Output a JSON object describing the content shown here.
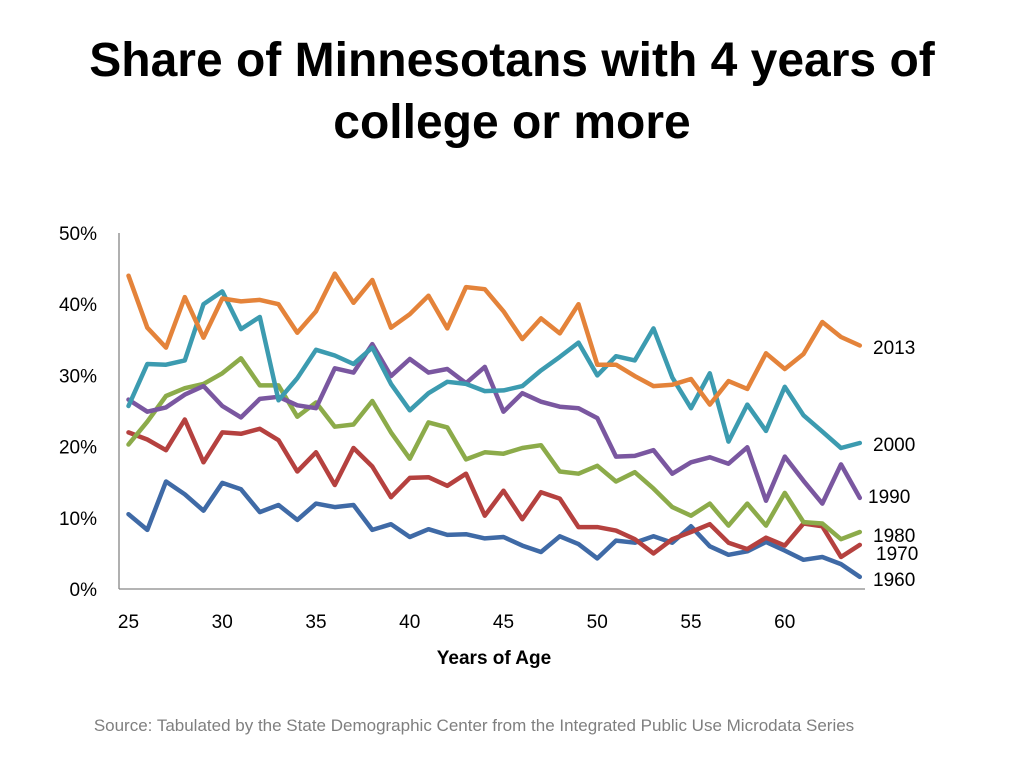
{
  "title": {
    "line1": "Share of Minnesotans with 4 years of",
    "line2": "college or more"
  },
  "source": "Source: Tabulated by the State Demographic Center from the Integrated Public Use Microdata Series",
  "chart_data": {
    "type": "line",
    "title": "Share of Minnesotans with 4 years of college or more",
    "xlabel": "Years of Age",
    "ylabel": "",
    "xlim": [
      25,
      64
    ],
    "ylim": [
      0,
      50
    ],
    "xticks": [
      25,
      30,
      35,
      40,
      45,
      50,
      55,
      60
    ],
    "xtick_labels": [
      "25",
      "30",
      "35",
      "40",
      "45",
      "50",
      "55",
      "60"
    ],
    "yticks": [
      0,
      10,
      20,
      30,
      40,
      50
    ],
    "ytick_labels": [
      "0%",
      "10%",
      "20%",
      "30%",
      "40%",
      "50%"
    ],
    "grid": false,
    "legend": "direct labels at line ends (right)",
    "x": [
      25,
      26,
      27,
      28,
      29,
      30,
      31,
      32,
      33,
      34,
      35,
      36,
      37,
      38,
      39,
      40,
      41,
      42,
      43,
      44,
      45,
      46,
      47,
      48,
      49,
      50,
      51,
      52,
      53,
      54,
      55,
      56,
      57,
      58,
      59,
      60,
      61,
      62,
      63,
      64
    ],
    "series": [
      {
        "name": "2013",
        "label": "2013",
        "color": "#e4833a",
        "values": [
          44,
          36.7,
          33.9,
          41,
          35.3,
          40.8,
          40.4,
          40.6,
          40,
          36,
          39,
          44.3,
          40.2,
          43.4,
          36.7,
          38.6,
          41.2,
          36.6,
          42.4,
          42.1,
          39,
          35.1,
          38,
          35.9,
          40,
          31.5,
          31.5,
          29.9,
          28.5,
          28.7,
          29.5,
          25.9,
          29.2,
          28.1,
          33.1,
          30.9,
          33,
          37.5,
          35.4,
          34.2
        ]
      },
      {
        "name": "2000",
        "label": "2000",
        "color": "#3c9bb0",
        "values": [
          25.7,
          31.6,
          31.5,
          32.1,
          40,
          41.8,
          36.5,
          38.2,
          26.5,
          29.6,
          33.6,
          32.8,
          31.6,
          33.9,
          28.8,
          25.1,
          27.5,
          29.1,
          28.8,
          27.8,
          27.9,
          28.5,
          30.7,
          32.6,
          34.6,
          30,
          32.7,
          32.1,
          36.6,
          29.7,
          25.4,
          30.3,
          20.7,
          25.9,
          22.2,
          28.4,
          24.4,
          22.1,
          19.8,
          20.5
        ]
      },
      {
        "name": "1990",
        "label": "1990",
        "color": "#7a57a0",
        "values": [
          26.6,
          24.9,
          25.5,
          27.3,
          28.5,
          25.7,
          24.1,
          26.7,
          27,
          25.8,
          25.4,
          31,
          30.4,
          34.4,
          29.9,
          32.3,
          30.4,
          30.9,
          28.9,
          31.2,
          24.9,
          27.5,
          26.3,
          25.6,
          25.4,
          24,
          18.6,
          18.7,
          19.5,
          16.2,
          17.8,
          18.5,
          17.6,
          19.9,
          12.4,
          18.6,
          15.2,
          12,
          17.5,
          12.8
        ]
      },
      {
        "name": "1980",
        "label": "1980",
        "color": "#8cab4a",
        "values": [
          20.3,
          23.5,
          27.1,
          28.2,
          28.8,
          30.3,
          32.4,
          28.6,
          28.6,
          24.2,
          26.2,
          22.8,
          23.1,
          26.4,
          22,
          18.3,
          23.4,
          22.7,
          18.2,
          19.2,
          19,
          19.8,
          20.2,
          16.5,
          16.2,
          17.3,
          15.1,
          16.4,
          14.1,
          11.5,
          10.3,
          12,
          8.9,
          12,
          8.9,
          13.5,
          9.4,
          9.2,
          7,
          8
        ]
      },
      {
        "name": "1970",
        "label": "1970",
        "color": "#b5413f",
        "values": [
          22,
          21,
          19.5,
          23.8,
          17.8,
          22,
          21.8,
          22.5,
          20.9,
          16.5,
          19.2,
          14.6,
          19.8,
          17.2,
          12.9,
          15.6,
          15.7,
          14.5,
          16.2,
          10.3,
          13.8,
          9.8,
          13.6,
          12.7,
          8.7,
          8.7,
          8.2,
          7,
          5,
          7,
          8,
          9.1,
          6.5,
          5.6,
          7.2,
          6.1,
          9.2,
          8.8,
          4.5,
          6.2
        ]
      },
      {
        "name": "1960",
        "label": "1960",
        "color": "#3f6aa6",
        "values": [
          10.5,
          8.3,
          15.1,
          13.3,
          11,
          14.9,
          14,
          10.8,
          11.8,
          9.7,
          12,
          11.5,
          11.8,
          8.3,
          9.1,
          7.3,
          8.4,
          7.6,
          7.7,
          7.1,
          7.3,
          6.1,
          5.2,
          7.4,
          6.3,
          4.3,
          6.8,
          6.5,
          7.4,
          6.5,
          8.8,
          6,
          4.8,
          5.3,
          6.6,
          5.4,
          4.1,
          4.5,
          3.5,
          1.7
        ]
      }
    ]
  }
}
